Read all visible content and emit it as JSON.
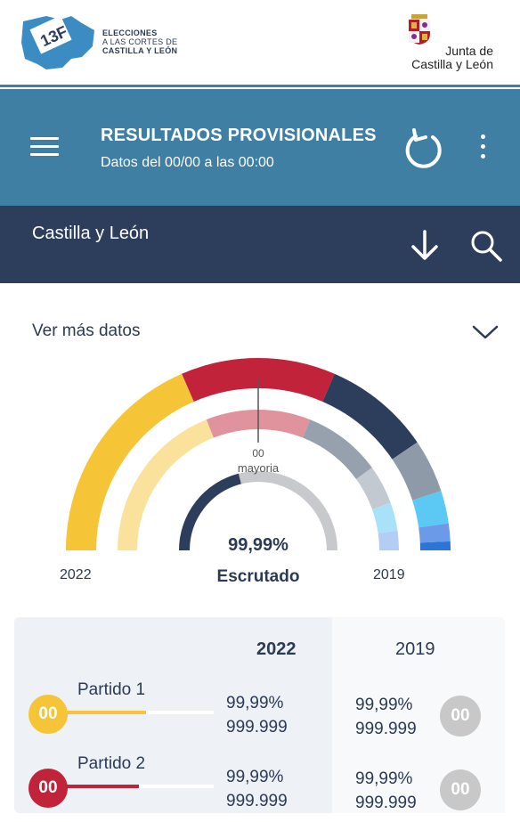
{
  "branding": {
    "left_logo_mark": "13F",
    "left_line1": "ELECCIONES",
    "left_line2": "A LAS CORTES DE",
    "left_line3": "CASTILLA Y LEÓN",
    "right_line1": "Junta de",
    "right_line2": "Castilla y León"
  },
  "header": {
    "title": "RESULTADOS PROVISIONALES",
    "subtitle": "Datos del 00/00 a las 00:00"
  },
  "region": {
    "name": "Castilla y León"
  },
  "section": {
    "ver_mas": "Ver más datos"
  },
  "chart_data": {
    "type": "pie",
    "outer_label": "2022",
    "inner_label": "2019",
    "majority_value": "00",
    "majority_label": "mayoria",
    "scrutiny_pct": "99,99%",
    "scrutiny_label": "Escrutado",
    "scrutiny_fraction": 0.9999,
    "outer_colors": [
      "#f5c537",
      "#c0233a",
      "#2d3e5c",
      "#8f9aa9",
      "#5cc8f4",
      "#6a9ae8",
      "#2c74d6"
    ],
    "inner_colors": [
      "#fbe29c",
      "#e0939d",
      "#97a0ad",
      "#c3c9d1",
      "#a8e1f8",
      "#b4cdf4"
    ]
  },
  "table": {
    "col_2022": "2022",
    "col_2019": "2019",
    "rows": [
      {
        "name": "Partido 1",
        "badge": "00",
        "color": "#f5c537",
        "fill": 0.55,
        "pct22": "99,99%",
        "val22": "999.999",
        "pct19": "99,99%",
        "val19": "999.999",
        "badge19": "00"
      },
      {
        "name": "Partido 2",
        "badge": "00",
        "color": "#c0233a",
        "fill": 0.5,
        "pct22": "99,99%",
        "val22": "999.999",
        "pct19": "99,99%",
        "val19": "999.999",
        "badge19": "00"
      }
    ]
  }
}
